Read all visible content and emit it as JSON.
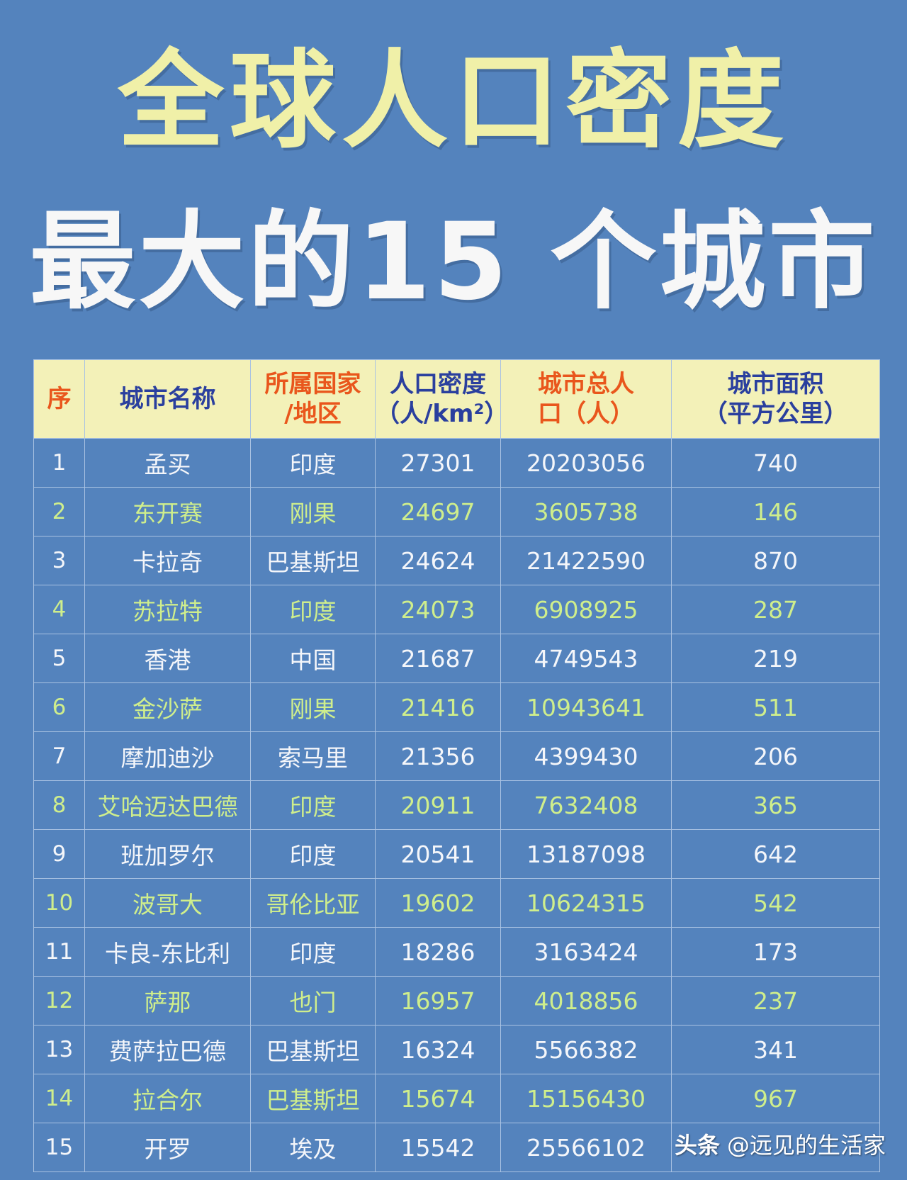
{
  "title": {
    "line1": "全球人口密度",
    "line2": "最大的15 个城市"
  },
  "table": {
    "headers": {
      "seq": "序",
      "city": "城市名称",
      "country_l1": "所属国家",
      "country_l2": "/地区",
      "density_l1": "人口密度",
      "density_l2": "（人/km²）",
      "population_l1": "城市总人",
      "population_l2": "口（人）",
      "area_l1": "城市面积",
      "area_l2": "（平方公里）"
    },
    "rows": [
      {
        "seq": "1",
        "city": "孟买",
        "country": "印度",
        "density": "27301",
        "population": "20203056",
        "area": "740"
      },
      {
        "seq": "2",
        "city": "东开赛",
        "country": "刚果",
        "density": "24697",
        "population": "3605738",
        "area": "146"
      },
      {
        "seq": "3",
        "city": "卡拉奇",
        "country": "巴基斯坦",
        "density": "24624",
        "population": "21422590",
        "area": "870"
      },
      {
        "seq": "4",
        "city": "苏拉特",
        "country": "印度",
        "density": "24073",
        "population": "6908925",
        "area": "287"
      },
      {
        "seq": "5",
        "city": "香港",
        "country": "中国",
        "density": "21687",
        "population": "4749543",
        "area": "219"
      },
      {
        "seq": "6",
        "city": "金沙萨",
        "country": "刚果",
        "density": "21416",
        "population": "10943641",
        "area": "511"
      },
      {
        "seq": "7",
        "city": "摩加迪沙",
        "country": "索马里",
        "density": "21356",
        "population": "4399430",
        "area": "206"
      },
      {
        "seq": "8",
        "city": "艾哈迈达巴德",
        "country": "印度",
        "density": "20911",
        "population": "7632408",
        "area": "365"
      },
      {
        "seq": "9",
        "city": "班加罗尔",
        "country": "印度",
        "density": "20541",
        "population": "13187098",
        "area": "642"
      },
      {
        "seq": "10",
        "city": "波哥大",
        "country": "哥伦比亚",
        "density": "19602",
        "population": "10624315",
        "area": "542"
      },
      {
        "seq": "11",
        "city": "卡良-东比利",
        "country": "印度",
        "density": "18286",
        "population": "3163424",
        "area": "173"
      },
      {
        "seq": "12",
        "city": "萨那",
        "country": "也门",
        "density": "16957",
        "population": "4018856",
        "area": "237"
      },
      {
        "seq": "13",
        "city": "费萨拉巴德",
        "country": "巴基斯坦",
        "density": "16324",
        "population": "5566382",
        "area": "341"
      },
      {
        "seq": "14",
        "city": "拉合尔",
        "country": "巴基斯坦",
        "density": "15674",
        "population": "15156430",
        "area": "967"
      },
      {
        "seq": "15",
        "city": "开罗",
        "country": "埃及",
        "density": "15542",
        "population": "25566102",
        "area": ""
      }
    ]
  },
  "watermark": {
    "brand": "头条",
    "handle": "@远见的生活家"
  },
  "colors": {
    "background": "#5483bd",
    "header_bg": "#f3f1b8",
    "header_orange": "#e9561c",
    "header_blue": "#2a3f9e",
    "row_text": "#f4f6fa",
    "alt_row_text": "#cfee8c",
    "title_yellow": "#f0f0a8"
  }
}
